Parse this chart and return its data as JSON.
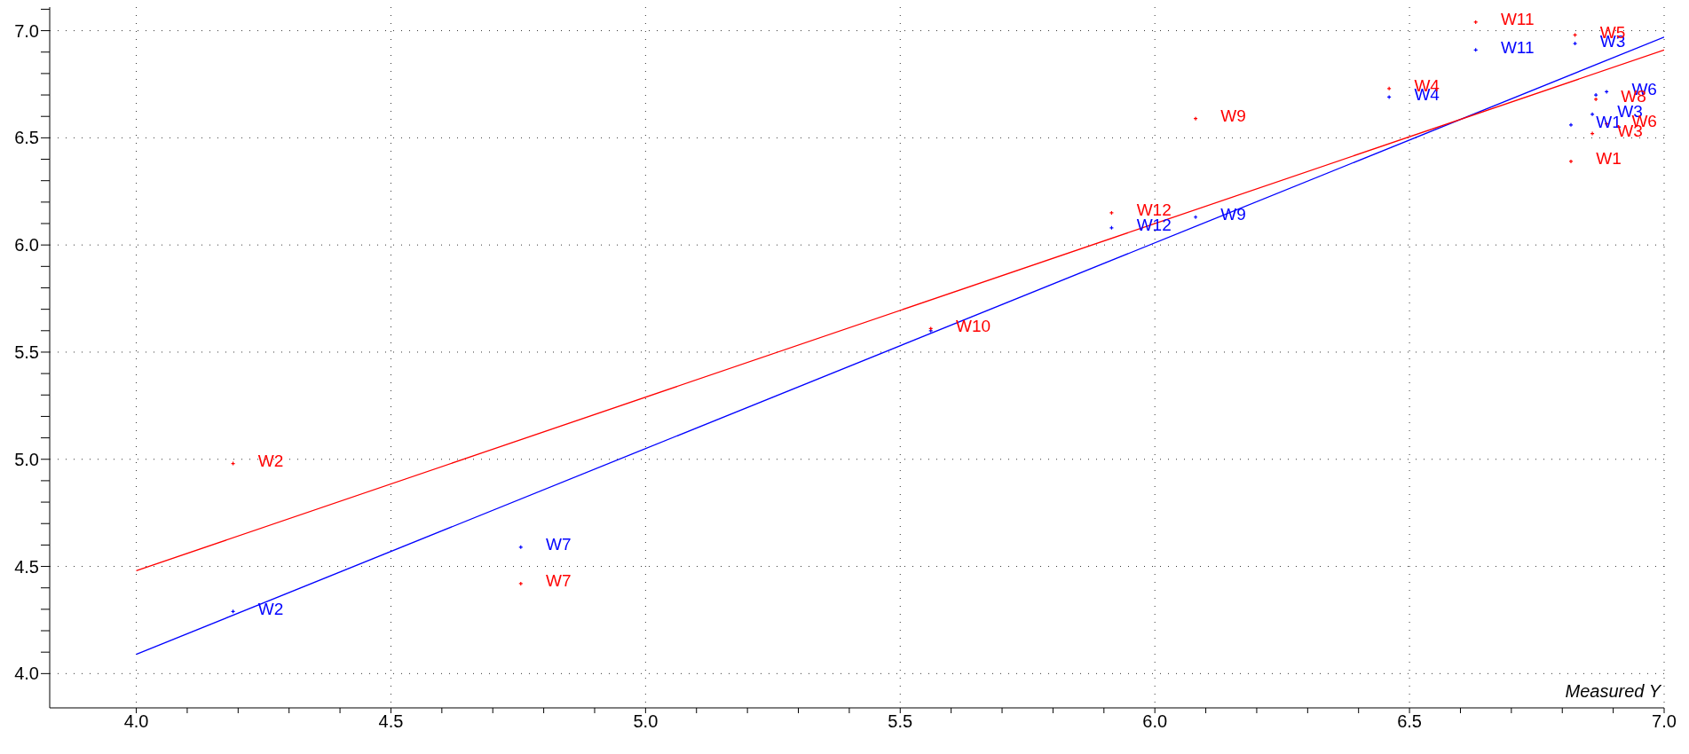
{
  "chart_data": {
    "type": "scatter",
    "xlabel": "Measured Y",
    "xlim": [
      3.83,
      7.0
    ],
    "ylim": [
      3.84,
      7.11
    ],
    "xticks": [
      {
        "value": 4.0,
        "label": "4.0"
      },
      {
        "value": 4.1,
        "label": null
      },
      {
        "value": 4.2,
        "label": null
      },
      {
        "value": 4.3,
        "label": null
      },
      {
        "value": 4.4,
        "label": null
      },
      {
        "value": 4.5,
        "label": "4.5"
      },
      {
        "value": 4.6,
        "label": null
      },
      {
        "value": 4.7,
        "label": null
      },
      {
        "value": 4.8,
        "label": null
      },
      {
        "value": 4.9,
        "label": null
      },
      {
        "value": 5.0,
        "label": "5.0"
      },
      {
        "value": 5.1,
        "label": null
      },
      {
        "value": 5.2,
        "label": null
      },
      {
        "value": 5.3,
        "label": null
      },
      {
        "value": 5.4,
        "label": null
      },
      {
        "value": 5.5,
        "label": "5.5"
      },
      {
        "value": 5.6,
        "label": null
      },
      {
        "value": 5.7,
        "label": null
      },
      {
        "value": 5.8,
        "label": null
      },
      {
        "value": 5.9,
        "label": null
      },
      {
        "value": 6.0,
        "label": "6.0"
      },
      {
        "value": 6.1,
        "label": null
      },
      {
        "value": 6.2,
        "label": null
      },
      {
        "value": 6.3,
        "label": null
      },
      {
        "value": 6.4,
        "label": null
      },
      {
        "value": 6.5,
        "label": "6.5"
      },
      {
        "value": 6.6,
        "label": null
      },
      {
        "value": 6.7,
        "label": null
      },
      {
        "value": 6.8,
        "label": null
      },
      {
        "value": 6.9,
        "label": null
      },
      {
        "value": 7.0,
        "label": "7.0"
      }
    ],
    "yticks": [
      {
        "value": 4.0,
        "label": "4.0"
      },
      {
        "value": 4.1,
        "label": null
      },
      {
        "value": 4.2,
        "label": null
      },
      {
        "value": 4.3,
        "label": null
      },
      {
        "value": 4.4,
        "label": null
      },
      {
        "value": 4.5,
        "label": "4.5"
      },
      {
        "value": 4.6,
        "label": null
      },
      {
        "value": 4.7,
        "label": null
      },
      {
        "value": 4.8,
        "label": null
      },
      {
        "value": 4.9,
        "label": null
      },
      {
        "value": 5.0,
        "label": "5.0"
      },
      {
        "value": 5.1,
        "label": null
      },
      {
        "value": 5.2,
        "label": null
      },
      {
        "value": 5.3,
        "label": null
      },
      {
        "value": 5.4,
        "label": null
      },
      {
        "value": 5.5,
        "label": "5.5"
      },
      {
        "value": 5.6,
        "label": null
      },
      {
        "value": 5.7,
        "label": null
      },
      {
        "value": 5.8,
        "label": null
      },
      {
        "value": 5.9,
        "label": null
      },
      {
        "value": 6.0,
        "label": "6.0"
      },
      {
        "value": 6.1,
        "label": null
      },
      {
        "value": 6.2,
        "label": null
      },
      {
        "value": 6.3,
        "label": null
      },
      {
        "value": 6.4,
        "label": null
      },
      {
        "value": 6.5,
        "label": "6.5"
      },
      {
        "value": 6.6,
        "label": null
      },
      {
        "value": 6.7,
        "label": null
      },
      {
        "value": 6.8,
        "label": null
      },
      {
        "value": 6.9,
        "label": null
      },
      {
        "value": 7.0,
        "label": "7.0"
      },
      {
        "value": 7.1,
        "label": null
      }
    ],
    "grid": true,
    "legend": false,
    "series": [
      {
        "marker": "cross",
        "color": "#ff0000",
        "x": [
          4.19,
          4.755,
          5.56,
          5.915,
          6.08,
          6.46,
          6.63,
          6.825,
          6.866,
          6.887,
          6.859,
          6.817
        ],
        "values": [
          4.98,
          4.42,
          5.61,
          6.15,
          6.59,
          6.73,
          7.04,
          6.98,
          6.68,
          6.565,
          6.52,
          6.39
        ],
        "value_labels": [
          "W2",
          "W7",
          "W10",
          "W12",
          "W9",
          "W4",
          "W11",
          "W5",
          "W8",
          "W6",
          "W3",
          "W1"
        ]
      },
      {
        "marker": "cross",
        "color": "#0000ff",
        "x": [
          4.19,
          4.755,
          5.56,
          5.915,
          6.08,
          6.46,
          6.63,
          6.825,
          6.866,
          6.887,
          6.859,
          6.817
        ],
        "values": [
          4.29,
          4.59,
          5.6,
          6.08,
          6.13,
          6.69,
          6.91,
          6.94,
          6.7,
          6.715,
          6.61,
          6.56
        ],
        "value_labels": [
          "W2",
          "W7",
          null,
          "W12",
          "W9",
          "W4",
          "W11",
          "W3",
          null,
          "W6",
          "W3",
          "W1"
        ]
      },
      {
        "type": "line",
        "color": "#ff0000",
        "x": [
          4.0,
          7.0
        ],
        "values": [
          4.48,
          6.91
        ]
      },
      {
        "type": "line",
        "color": "#0000ff",
        "x": [
          4.0,
          7.0
        ],
        "values": [
          4.09,
          6.97
        ]
      }
    ]
  }
}
